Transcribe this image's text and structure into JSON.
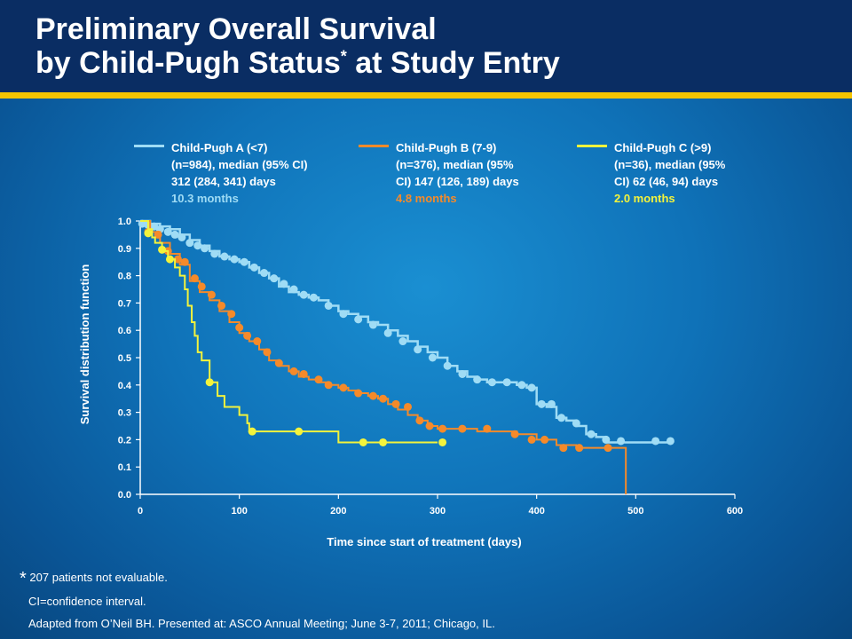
{
  "slide": {
    "title_line1": "Preliminary Overall Survival",
    "title_line2": "by Child-Pugh Status",
    "title_sup": "*",
    "title_line2_end": " at Study Entry"
  },
  "legend": [
    {
      "text": "Child-Pugh A (<7)\n(n=984), median (95% CI)\n312 (284, 341) days",
      "median": "10.3 months",
      "color": "#9fdcf5"
    },
    {
      "text": "Child-Pugh B (7-9)\n(n=376), median (95%\nCI) 147 (126, 189) days",
      "median": "4.8 months",
      "color": "#f58a2a"
    },
    {
      "text": "Child-Pugh C (>9)\n(n=36), median (95%\nCI) 62 (46, 94) days",
      "median": "2.0 months",
      "color": "#f3f33c"
    }
  ],
  "footnotes": {
    "star": "*",
    "line1": " 207 patients not evaluable.",
    "line2": "CI=confidence interval.",
    "line3": "Adapted from O’Neil BH. Presented at: ASCO Annual Meeting; June 3-7, 2011; Chicago, IL."
  },
  "chart_data": {
    "type": "line",
    "xlabel": "Time since start of treatment (days)",
    "ylabel": "Survival distribution function",
    "xlim": [
      0,
      600
    ],
    "ylim": [
      0,
      1
    ],
    "xticks": [
      "0",
      "100",
      "200",
      "300",
      "400",
      "500",
      "600"
    ],
    "yticks": [
      "0.0",
      "0.1",
      "0.2",
      "0.3",
      "0.4",
      "0.5",
      "0.6",
      "0.7",
      "0.8",
      "0.9",
      "1.0"
    ],
    "step": true,
    "series": [
      {
        "name": "Child-Pugh A (<7)",
        "color": "#9fdcf5",
        "x": [
          0,
          10,
          20,
          30,
          40,
          50,
          60,
          70,
          80,
          90,
          100,
          110,
          120,
          130,
          140,
          150,
          160,
          170,
          180,
          190,
          200,
          210,
          220,
          230,
          240,
          250,
          260,
          270,
          280,
          290,
          300,
          310,
          320,
          330,
          340,
          350,
          360,
          370,
          380,
          390,
          400,
          410,
          420,
          430,
          440,
          450,
          460,
          470,
          480,
          500,
          520,
          535
        ],
        "y": [
          1.0,
          0.99,
          0.98,
          0.97,
          0.95,
          0.93,
          0.91,
          0.89,
          0.87,
          0.86,
          0.85,
          0.83,
          0.81,
          0.79,
          0.76,
          0.74,
          0.73,
          0.72,
          0.71,
          0.69,
          0.67,
          0.66,
          0.65,
          0.63,
          0.62,
          0.6,
          0.58,
          0.56,
          0.54,
          0.52,
          0.5,
          0.47,
          0.45,
          0.43,
          0.42,
          0.41,
          0.41,
          0.41,
          0.4,
          0.39,
          0.33,
          0.32,
          0.28,
          0.27,
          0.25,
          0.22,
          0.21,
          0.19,
          0.19,
          0.19,
          0.19,
          0.19
        ],
        "markers": [
          [
            2,
            0.99
          ],
          [
            8,
            0.985
          ],
          [
            14,
            0.98
          ],
          [
            20,
            0.97
          ],
          [
            28,
            0.96
          ],
          [
            35,
            0.95
          ],
          [
            42,
            0.94
          ],
          [
            50,
            0.92
          ],
          [
            58,
            0.91
          ],
          [
            65,
            0.9
          ],
          [
            75,
            0.88
          ],
          [
            85,
            0.87
          ],
          [
            95,
            0.86
          ],
          [
            105,
            0.85
          ],
          [
            115,
            0.83
          ],
          [
            125,
            0.81
          ],
          [
            135,
            0.79
          ],
          [
            145,
            0.77
          ],
          [
            155,
            0.75
          ],
          [
            165,
            0.73
          ],
          [
            175,
            0.72
          ],
          [
            190,
            0.69
          ],
          [
            205,
            0.66
          ],
          [
            220,
            0.64
          ],
          [
            235,
            0.62
          ],
          [
            250,
            0.59
          ],
          [
            265,
            0.56
          ],
          [
            280,
            0.53
          ],
          [
            295,
            0.5
          ],
          [
            310,
            0.47
          ],
          [
            325,
            0.44
          ],
          [
            340,
            0.42
          ],
          [
            355,
            0.41
          ],
          [
            370,
            0.41
          ],
          [
            385,
            0.4
          ],
          [
            395,
            0.39
          ],
          [
            405,
            0.33
          ],
          [
            415,
            0.33
          ],
          [
            425,
            0.28
          ],
          [
            440,
            0.26
          ],
          [
            455,
            0.22
          ],
          [
            470,
            0.2
          ],
          [
            485,
            0.195
          ],
          [
            520,
            0.195
          ],
          [
            535,
            0.195
          ]
        ]
      },
      {
        "name": "Child-Pugh B (7-9)",
        "color": "#f58a2a",
        "x": [
          0,
          10,
          20,
          30,
          40,
          50,
          60,
          70,
          80,
          90,
          100,
          110,
          120,
          130,
          140,
          150,
          160,
          170,
          180,
          190,
          200,
          210,
          220,
          230,
          240,
          250,
          260,
          270,
          280,
          290,
          300,
          320,
          340,
          360,
          380,
          400,
          420,
          440,
          460,
          480,
          490,
          490
        ],
        "y": [
          1.0,
          0.96,
          0.92,
          0.88,
          0.84,
          0.78,
          0.74,
          0.71,
          0.67,
          0.63,
          0.59,
          0.56,
          0.53,
          0.49,
          0.47,
          0.45,
          0.43,
          0.42,
          0.41,
          0.4,
          0.39,
          0.38,
          0.37,
          0.36,
          0.35,
          0.33,
          0.31,
          0.29,
          0.27,
          0.25,
          0.24,
          0.24,
          0.23,
          0.23,
          0.22,
          0.2,
          0.18,
          0.17,
          0.17,
          0.17,
          0.17,
          0.0
        ],
        "markers": [
          [
            8,
            0.96
          ],
          [
            18,
            0.95
          ],
          [
            28,
            0.89
          ],
          [
            38,
            0.86
          ],
          [
            45,
            0.85
          ],
          [
            55,
            0.79
          ],
          [
            62,
            0.76
          ],
          [
            72,
            0.73
          ],
          [
            82,
            0.69
          ],
          [
            92,
            0.66
          ],
          [
            100,
            0.61
          ],
          [
            108,
            0.58
          ],
          [
            118,
            0.56
          ],
          [
            128,
            0.52
          ],
          [
            140,
            0.48
          ],
          [
            155,
            0.45
          ],
          [
            165,
            0.44
          ],
          [
            180,
            0.42
          ],
          [
            190,
            0.4
          ],
          [
            205,
            0.39
          ],
          [
            220,
            0.37
          ],
          [
            235,
            0.36
          ],
          [
            245,
            0.35
          ],
          [
            258,
            0.33
          ],
          [
            270,
            0.32
          ],
          [
            282,
            0.27
          ],
          [
            292,
            0.25
          ],
          [
            305,
            0.24
          ],
          [
            325,
            0.24
          ],
          [
            350,
            0.24
          ],
          [
            378,
            0.22
          ],
          [
            395,
            0.2
          ],
          [
            408,
            0.2
          ],
          [
            427,
            0.17
          ],
          [
            443,
            0.17
          ],
          [
            472,
            0.17
          ]
        ]
      },
      {
        "name": "Child-Pugh C (>9)",
        "color": "#f3f33c",
        "x": [
          0,
          8,
          12,
          15,
          22,
          28,
          35,
          40,
          45,
          48,
          52,
          55,
          58,
          62,
          70,
          78,
          85,
          100,
          108,
          110,
          200,
          200,
          300
        ],
        "y": [
          1.0,
          0.97,
          0.94,
          0.92,
          0.89,
          0.86,
          0.83,
          0.8,
          0.75,
          0.69,
          0.63,
          0.58,
          0.52,
          0.49,
          0.41,
          0.36,
          0.32,
          0.29,
          0.26,
          0.23,
          0.23,
          0.19,
          0.19
        ],
        "markers": [
          [
            8,
            0.955
          ],
          [
            22,
            0.895
          ],
          [
            30,
            0.86
          ],
          [
            70,
            0.41
          ],
          [
            113,
            0.23
          ],
          [
            160,
            0.23
          ],
          [
            225,
            0.19
          ],
          [
            245,
            0.19
          ],
          [
            305,
            0.19
          ]
        ]
      }
    ]
  }
}
